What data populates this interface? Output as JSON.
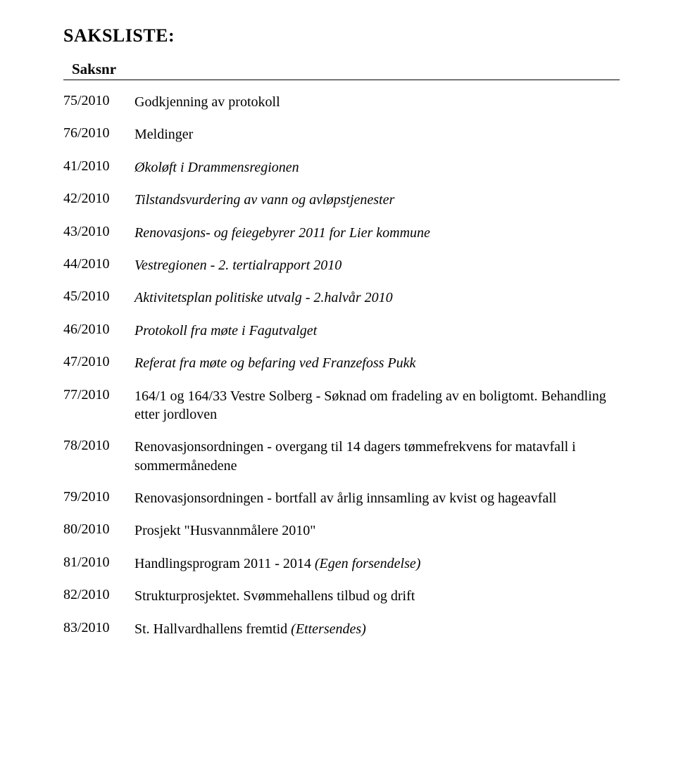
{
  "heading": "SAKSLISTE:",
  "subheading": "Saksnr",
  "entries": [
    {
      "num": "75/2010",
      "title": "Godkjenning av protokoll",
      "italic": false
    },
    {
      "num": "76/2010",
      "title": "Meldinger",
      "italic": false
    },
    {
      "num": "41/2010",
      "title": "Økoløft i Drammensregionen",
      "italic": true
    },
    {
      "num": "42/2010",
      "title": "Tilstandsvurdering av vann og avløpstjenester",
      "italic": true
    },
    {
      "num": "43/2010",
      "title": "Renovasjons- og feiegebyrer 2011 for Lier kommune",
      "italic": true
    },
    {
      "num": "44/2010",
      "title": "Vestregionen - 2. tertialrapport 2010",
      "italic": true
    },
    {
      "num": "45/2010",
      "title": "Aktivitetsplan politiske utvalg - 2.halvår 2010",
      "italic": true
    },
    {
      "num": "46/2010",
      "title": "Protokoll fra møte i Fagutvalget",
      "italic": true
    },
    {
      "num": "47/2010",
      "title": "Referat fra møte og befaring ved Franzefoss Pukk",
      "italic": true
    },
    {
      "num": "77/2010",
      "title": "164/1 og 164/33 Vestre Solberg - Søknad om fradeling av en boligtomt. Behandling etter jordloven",
      "italic": false
    },
    {
      "num": "78/2010",
      "title": "Renovasjonsordningen - overgang til 14 dagers tømmefrekvens for matavfall i sommermånedene",
      "italic": false
    },
    {
      "num": "79/2010",
      "title": "Renovasjonsordningen - bortfall av årlig innsamling av kvist og hageavfall",
      "italic": false
    },
    {
      "num": "80/2010",
      "title": "Prosjekt \"Husvannmålere 2010\"",
      "italic": false
    },
    {
      "num": "81/2010",
      "title": "Handlingsprogram 2011 - 2014  ",
      "italic": false,
      "suffix_italic": "(Egen forsendelse)"
    },
    {
      "num": "82/2010",
      "title": "Strukturprosjektet. Svømmehallens tilbud og drift",
      "italic": false
    },
    {
      "num": "83/2010",
      "title": "St. Hallvardhallens fremtid ",
      "italic": false,
      "suffix_italic": "(Ettersendes)"
    }
  ]
}
